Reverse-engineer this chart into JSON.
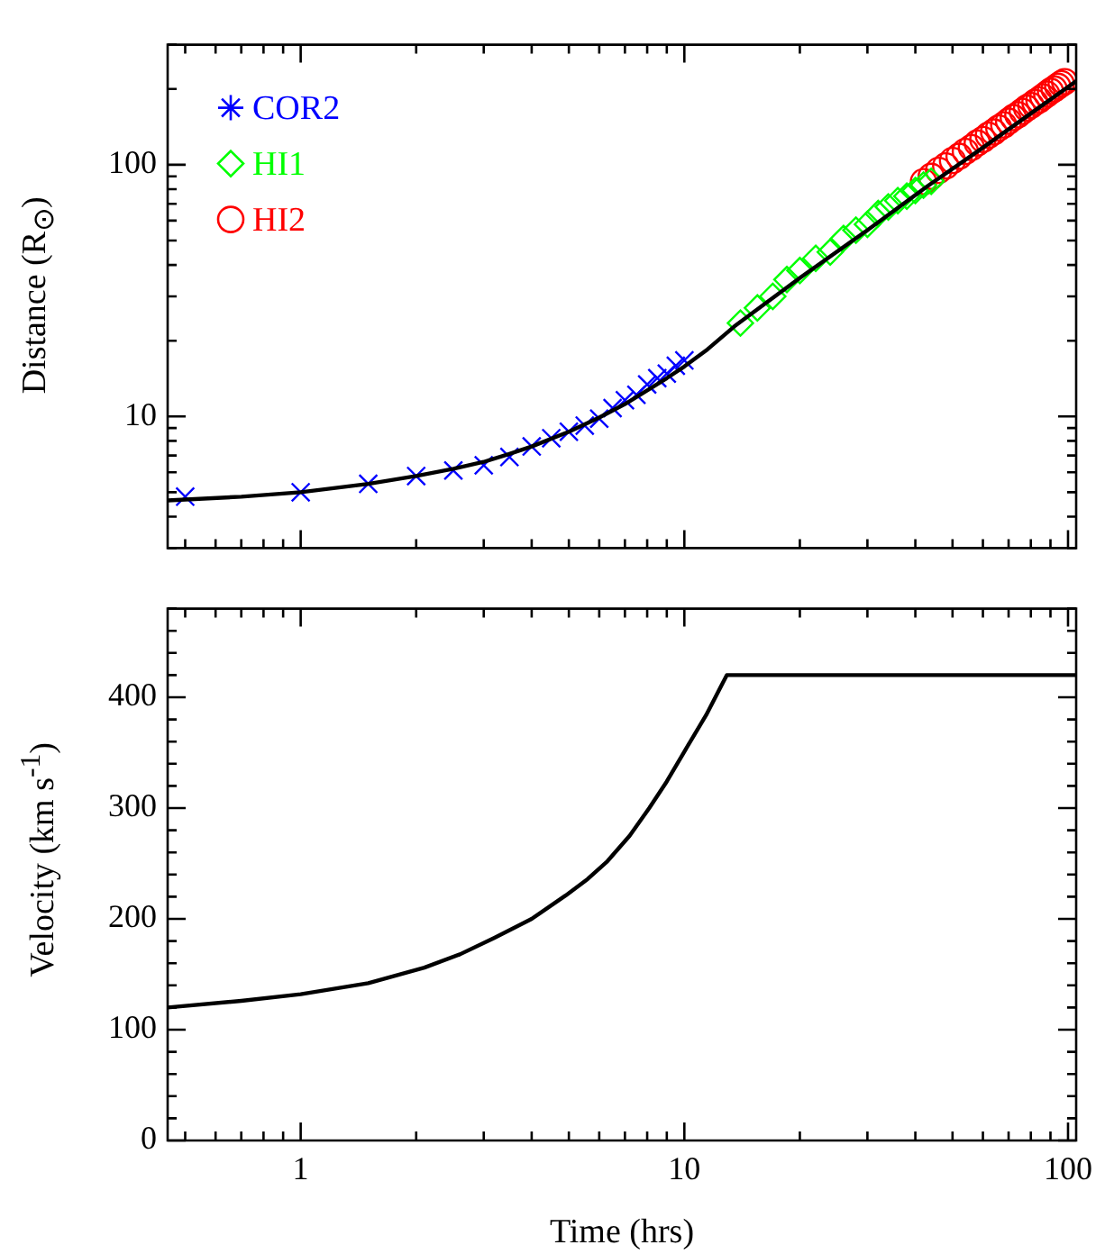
{
  "chart_data": [
    {
      "type": "line",
      "ylabel": "Distance (R$_{⊙}$)",
      "log": "xy",
      "tick_labels": "y",
      "legend": "top left",
      "xlim": [
        0.45,
        105
      ],
      "ylim": [
        3,
        300
      ],
      "xticks": [
        {
          "value": 0.5,
          "label": null
        },
        {
          "value": 0.6,
          "label": null
        },
        {
          "value": 0.7,
          "label": null
        },
        {
          "value": 0.8,
          "label": null
        },
        {
          "value": 0.9,
          "label": null
        },
        1,
        {
          "value": 2,
          "label": null
        },
        {
          "value": 3,
          "label": null
        },
        {
          "value": 4,
          "label": null
        },
        {
          "value": 5,
          "label": null
        },
        {
          "value": 6,
          "label": null
        },
        {
          "value": 7,
          "label": null
        },
        {
          "value": 8,
          "label": null
        },
        {
          "value": 9,
          "label": null
        },
        10,
        {
          "value": 20,
          "label": null
        },
        {
          "value": 30,
          "label": null
        },
        {
          "value": 40,
          "label": null
        },
        {
          "value": 50,
          "label": null
        },
        {
          "value": 60,
          "label": null
        },
        {
          "value": 70,
          "label": null
        },
        {
          "value": 80,
          "label": null
        },
        {
          "value": 90,
          "label": null
        },
        100
      ],
      "yticks": [
        {
          "value": 3,
          "label": null
        },
        {
          "value": 4,
          "label": null
        },
        {
          "value": 5,
          "label": null
        },
        {
          "value": 6,
          "label": null
        },
        {
          "value": 7,
          "label": null
        },
        {
          "value": 8,
          "label": null
        },
        {
          "value": 9,
          "label": null
        },
        10,
        {
          "value": 20,
          "label": null
        },
        {
          "value": 30,
          "label": null
        },
        {
          "value": 40,
          "label": null
        },
        {
          "value": 50,
          "label": null
        },
        {
          "value": 60,
          "label": null
        },
        {
          "value": 70,
          "label": null
        },
        {
          "value": 80,
          "label": null
        },
        {
          "value": 90,
          "label": null
        },
        100,
        {
          "value": 200,
          "label": null
        },
        {
          "value": 300,
          "label": null
        }
      ],
      "series": [
        {
          "type": "line",
          "color": "#000000",
          "marker": "none",
          "line_style": "solid",
          "x": [
            0.45,
            0.7,
            1,
            1.5,
            2,
            2.5,
            3,
            3.5,
            4,
            5,
            6,
            7,
            8,
            9,
            10,
            11.5,
            13.5,
            20,
            30,
            42.9,
            60,
            80,
            105
          ],
          "values": [
            4.64,
            4.8,
            5.0,
            5.4,
            5.8,
            6.2,
            6.6,
            7.1,
            7.6,
            8.7,
            9.9,
            11.2,
            12.7,
            14.2,
            15.8,
            18.5,
            22.8,
            35.5,
            55,
            82,
            117,
            160,
            215
          ]
        },
        {
          "type": "scatter",
          "name": "COR2",
          "color": "#0000ff",
          "marker": "cross",
          "x": [
            0.5,
            1,
            1.5,
            2,
            2.5,
            3,
            3.5,
            4,
            4.5,
            5,
            5.5,
            6,
            6.5,
            7,
            7.5,
            8,
            8.5,
            9,
            9.5,
            10
          ],
          "values": [
            4.8,
            5.0,
            5.4,
            5.8,
            6.1,
            6.4,
            6.9,
            7.6,
            8.2,
            8.7,
            9.2,
            9.8,
            10.8,
            11.6,
            12.2,
            13.4,
            14.2,
            14.8,
            15.9,
            16.7
          ]
        },
        {
          "type": "scatter",
          "name": "HI1",
          "color": "#00ff00",
          "marker": "diamond",
          "x": [
            14,
            15.5,
            17,
            18.5,
            20,
            22,
            24,
            26,
            28,
            30,
            32,
            34,
            36,
            38,
            40,
            42,
            44
          ],
          "values": [
            23.5,
            27,
            30,
            35,
            38,
            42.5,
            45,
            51,
            55,
            58,
            64,
            68,
            72,
            75,
            79,
            83,
            86
          ]
        },
        {
          "type": "scatter",
          "name": "HI2",
          "color": "#ff0000",
          "marker": "circle",
          "x": [
            42,
            44,
            46,
            48,
            50,
            52,
            54,
            56,
            58,
            60,
            62,
            64,
            66,
            68,
            70,
            72,
            74,
            76,
            78,
            80,
            82,
            84,
            86,
            88,
            90,
            92,
            94,
            96,
            98
          ],
          "values": [
            85.7,
            90,
            95,
            99,
            104,
            108,
            113,
            117,
            122,
            126,
            131,
            135,
            140,
            144,
            149,
            154,
            158,
            163,
            168,
            172,
            177,
            181,
            186,
            191,
            196,
            200,
            205,
            210,
            214
          ]
        }
      ]
    },
    {
      "type": "line",
      "xlabel": "Time (hrs)",
      "ylabel": "Velocity (km s$^{-1}$)",
      "log": "x",
      "xlim": [
        0.45,
        105
      ],
      "ylim": [
        0,
        480
      ],
      "xticks": [
        {
          "value": 0.5,
          "label": null
        },
        {
          "value": 0.6,
          "label": null
        },
        {
          "value": 0.7,
          "label": null
        },
        {
          "value": 0.8,
          "label": null
        },
        {
          "value": 0.9,
          "label": null
        },
        1,
        {
          "value": 2,
          "label": null
        },
        {
          "value": 3,
          "label": null
        },
        {
          "value": 4,
          "label": null
        },
        {
          "value": 5,
          "label": null
        },
        {
          "value": 6,
          "label": null
        },
        {
          "value": 7,
          "label": null
        },
        {
          "value": 8,
          "label": null
        },
        {
          "value": 9,
          "label": null
        },
        10,
        {
          "value": 20,
          "label": null
        },
        {
          "value": 30,
          "label": null
        },
        {
          "value": 40,
          "label": null
        },
        {
          "value": 50,
          "label": null
        },
        {
          "value": 60,
          "label": null
        },
        {
          "value": 70,
          "label": null
        },
        {
          "value": 80,
          "label": null
        },
        {
          "value": 90,
          "label": null
        },
        100
      ],
      "yticks": [
        0,
        {
          "value": 20,
          "label": null
        },
        {
          "value": 40,
          "label": null
        },
        {
          "value": 60,
          "label": null
        },
        {
          "value": 80,
          "label": null
        },
        100,
        {
          "value": 120,
          "label": null
        },
        {
          "value": 140,
          "label": null
        },
        {
          "value": 160,
          "label": null
        },
        {
          "value": 180,
          "label": null
        },
        200,
        {
          "value": 220,
          "label": null
        },
        {
          "value": 240,
          "label": null
        },
        {
          "value": 260,
          "label": null
        },
        {
          "value": 280,
          "label": null
        },
        300,
        {
          "value": 320,
          "label": null
        },
        {
          "value": 340,
          "label": null
        },
        {
          "value": 360,
          "label": null
        },
        {
          "value": 380,
          "label": null
        },
        400,
        {
          "value": 420,
          "label": null
        },
        {
          "value": 440,
          "label": null
        },
        {
          "value": 460,
          "label": null
        },
        {
          "value": 480,
          "label": null
        }
      ],
      "series": [
        {
          "type": "line",
          "color": "#000000",
          "marker": "none",
          "line_style": "solid",
          "x": [
            0.45,
            0.7,
            1,
            1.5,
            2.1,
            2.6,
            3.2,
            4,
            4.9,
            5.6,
            6.3,
            7.2,
            8.1,
            9,
            10,
            11.4,
            12.9,
            105
          ],
          "values": [
            120,
            126,
            132,
            142,
            156,
            168,
            183,
            200,
            221,
            236,
            252,
            275,
            300,
            324,
            351,
            384,
            420,
            420
          ]
        }
      ]
    }
  ]
}
